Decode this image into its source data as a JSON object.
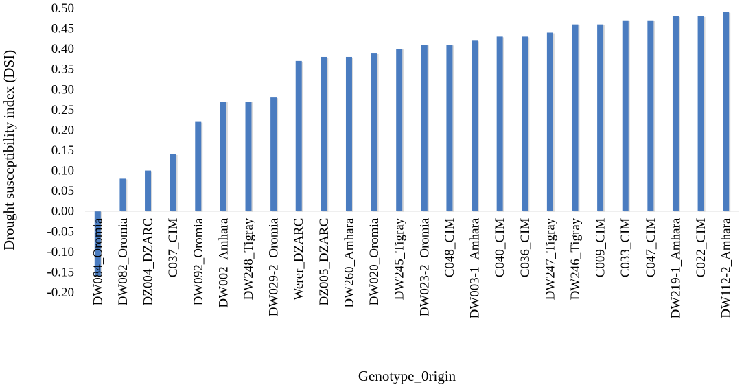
{
  "chart_data": {
    "type": "bar",
    "title": "",
    "xlabel": "Genotype_0rigin",
    "ylabel": "Drought susceptibility index (DSI)",
    "ylim": [
      -0.2,
      0.5
    ],
    "yticks": [
      "-0.20",
      "-0.15",
      "-0.10",
      "-0.05",
      "0.00",
      "0.05",
      "0.10",
      "0.15",
      "0.20",
      "0.25",
      "0.30",
      "0.35",
      "0.40",
      "0.45",
      "0.50"
    ],
    "grid": false,
    "legend": "none",
    "bar_color": "#4a7cc0",
    "categories": [
      "DW084_Oromia",
      "DW082_Oromia",
      "DZ004_DZARC",
      "C037_CIM",
      "DW092_Oromia",
      "DW002_Amhara",
      "DW248_Tigray",
      "DW029-2_Oromia",
      "Werer_DZARC",
      "DZ005_DZARC",
      "DW260_Amhara",
      "DW020_Oromia",
      "DW245_Tigray",
      "DW023-2_Oromia",
      "C048_CIM",
      "DW003-1_Amhara",
      "C040_CIM",
      "C036_CIM",
      "DW247_Tigray",
      "DW246_Tigray",
      "C009_CIM",
      "C033_CIM",
      "C047_CIM",
      "DW219-1_Amhara",
      "C022_CIM",
      "DW112-2_Amhara"
    ],
    "values": [
      -0.16,
      0.08,
      0.1,
      0.14,
      0.22,
      0.27,
      0.27,
      0.28,
      0.37,
      0.38,
      0.38,
      0.39,
      0.4,
      0.41,
      0.41,
      0.42,
      0.43,
      0.43,
      0.44,
      0.46,
      0.46,
      0.47,
      0.47,
      0.48,
      0.48,
      0.49
    ]
  }
}
